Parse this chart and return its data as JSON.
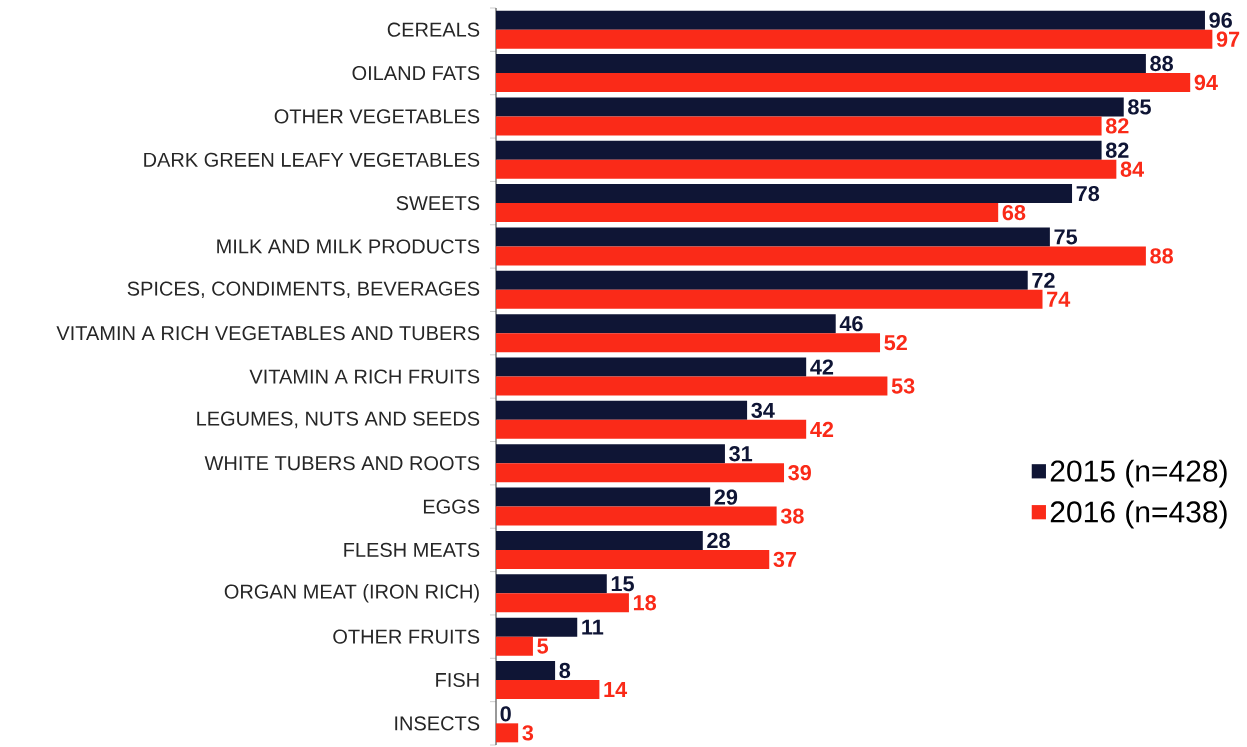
{
  "chart_data": {
    "type": "bar",
    "orientation": "horizontal",
    "categories": [
      "CEREALS",
      "OILAND FATS",
      "OTHER VEGETABLES",
      "DARK GREEN LEAFY VEGETABLES",
      "SWEETS",
      "MILK AND MILK PRODUCTS",
      "SPICES, CONDIMENTS, BEVERAGES",
      "VITAMIN A RICH VEGETABLES AND TUBERS",
      "VITAMIN A RICH FRUITS",
      "LEGUMES, NUTS AND SEEDS",
      "WHITE TUBERS AND ROOTS",
      "EGGS",
      "FLESH MEATS",
      "ORGAN MEAT (IRON RICH)",
      "OTHER FRUITS",
      "FISH",
      "INSECTS"
    ],
    "series": [
      {
        "name": "2015 (n=428)",
        "color": "#0f1535",
        "values": [
          96,
          88,
          85,
          82,
          78,
          75,
          72,
          46,
          42,
          34,
          31,
          29,
          28,
          15,
          11,
          8,
          0
        ]
      },
      {
        "name": "2016 (n=438)",
        "color": "#fa2a18",
        "values": [
          97,
          94,
          82,
          84,
          68,
          88,
          74,
          52,
          53,
          42,
          39,
          38,
          37,
          18,
          5,
          14,
          3
        ]
      }
    ],
    "data_labels": true,
    "legend": "right"
  }
}
